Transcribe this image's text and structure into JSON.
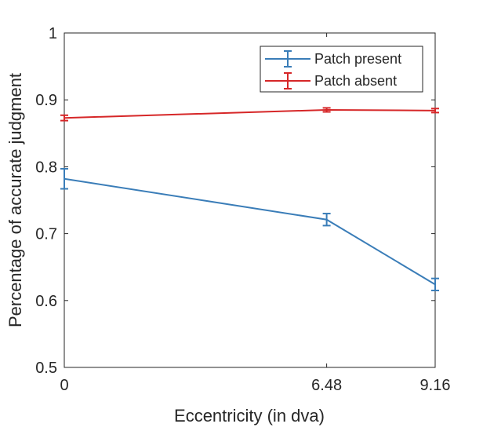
{
  "chart_data": {
    "type": "line",
    "xlabel": "Eccentricity (in dva)",
    "ylabel": "Percentage of accurate judgment",
    "xlim": [
      0,
      9.16
    ],
    "ylim": [
      0.5,
      1
    ],
    "x": [
      0,
      6.48,
      9.16
    ],
    "x_tick_labels": [
      "0",
      "6.48",
      "9.16"
    ],
    "y_ticks": [
      0.5,
      0.6,
      0.7,
      0.8,
      0.9,
      1
    ],
    "y_tick_labels": [
      "0.5",
      "0.6",
      "0.7",
      "0.8",
      "0.9",
      "1"
    ],
    "grid": false,
    "legend_position": "top-right",
    "series": [
      {
        "name": "Patch present",
        "color": "#3a7db8",
        "values": [
          0.782,
          0.721,
          0.624
        ],
        "error": [
          0.015,
          0.009,
          0.009
        ]
      },
      {
        "name": "Patch absent",
        "color": "#d62728",
        "values": [
          0.873,
          0.885,
          0.884
        ],
        "error": [
          0.004,
          0.003,
          0.003
        ]
      }
    ]
  }
}
